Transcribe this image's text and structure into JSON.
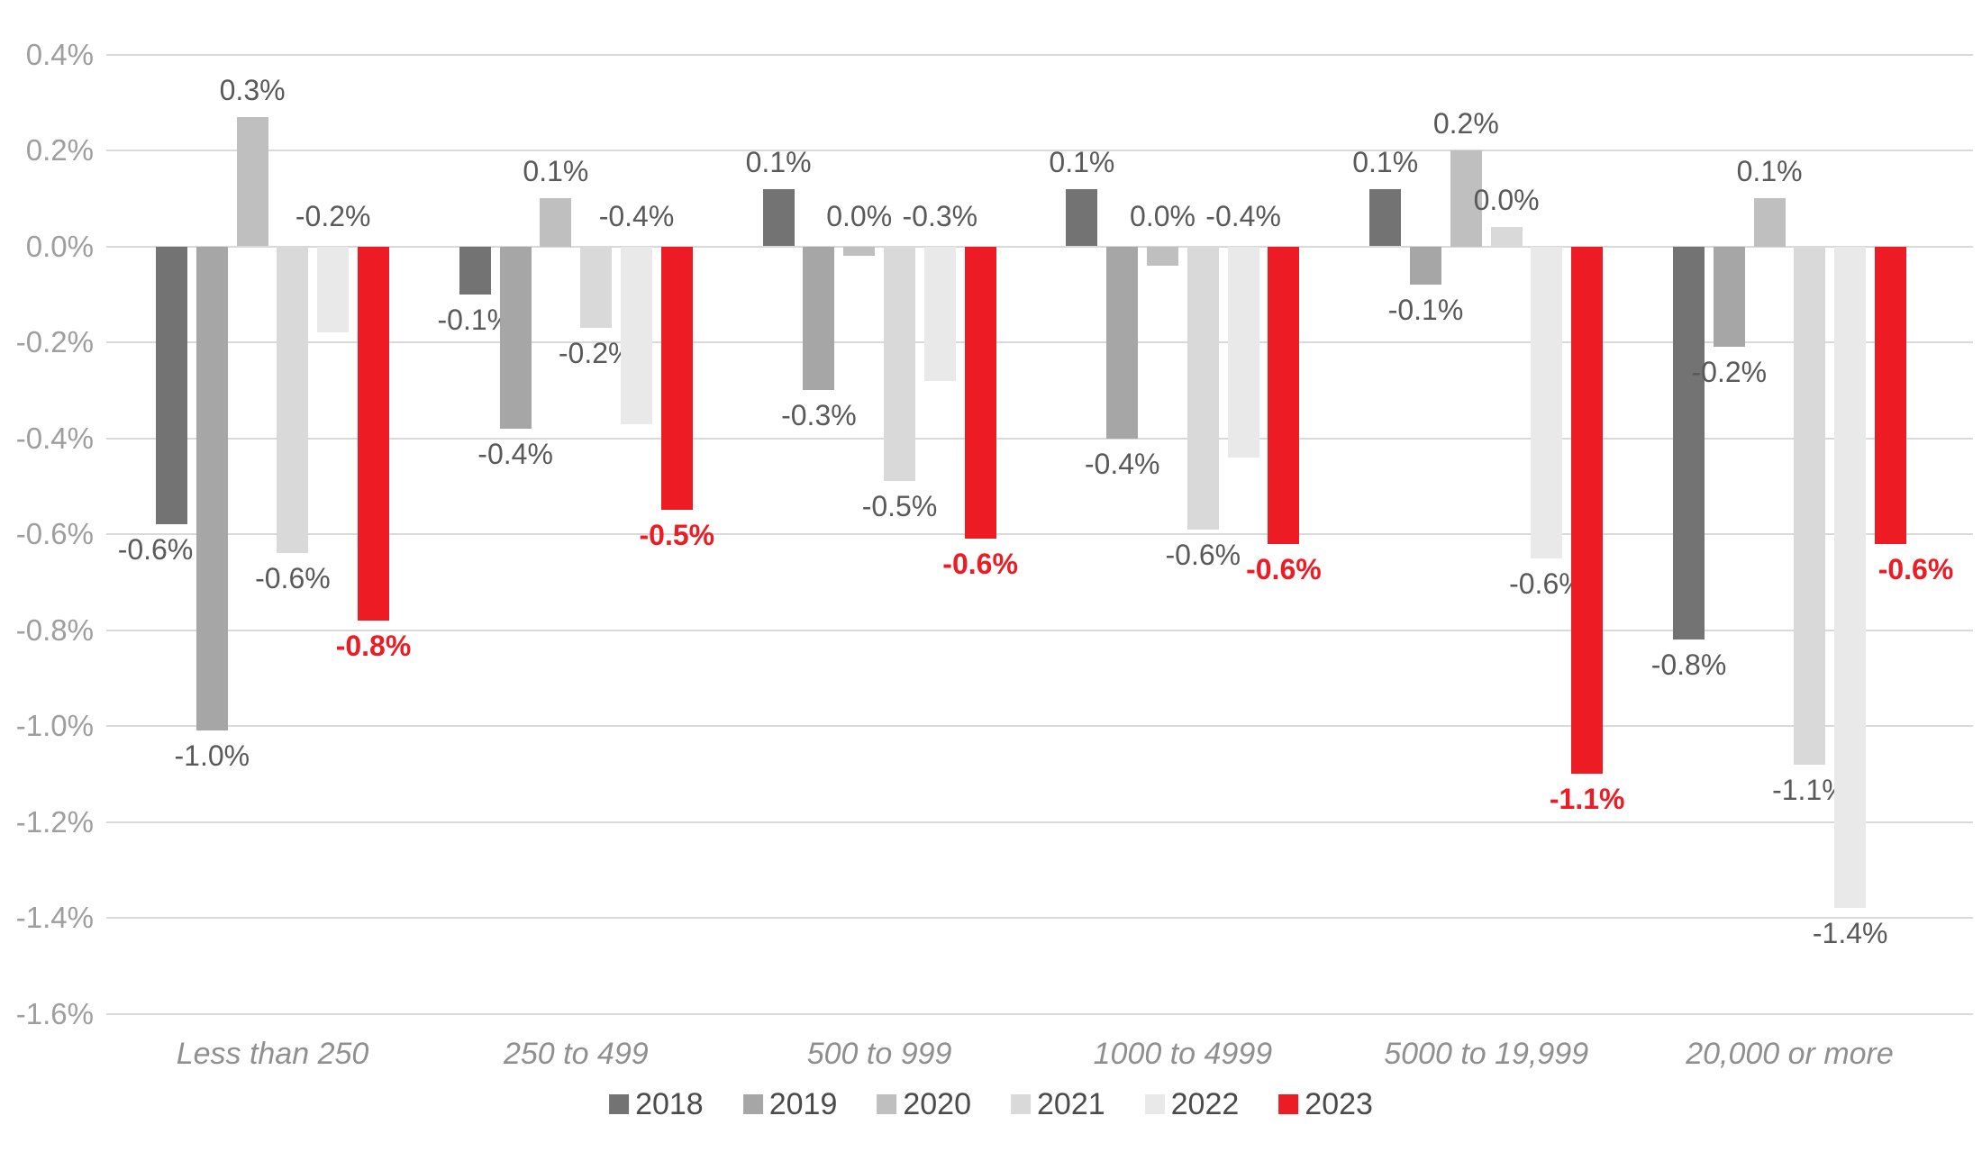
{
  "chart_data": {
    "type": "bar",
    "title": "",
    "categories": [
      "Less than 250",
      "250 to 499",
      "500 to 999",
      "1000 to 4999",
      "5000 to 19,999",
      "20,000 or more"
    ],
    "series": [
      {
        "name": "2018",
        "color": "#737373",
        "label_color": "#595959",
        "values": [
          -0.58,
          -0.1,
          0.12,
          0.12,
          0.12,
          -0.82
        ],
        "labels": [
          "-0.6%",
          "-0.1%",
          "0.1%",
          "0.1%",
          "0.1%",
          "-0.8%"
        ],
        "label_pos": [
          "out",
          "out",
          "out",
          "out",
          "out",
          "out"
        ],
        "label_dx": [
          -18,
          0,
          0,
          0,
          0,
          0
        ]
      },
      {
        "name": "2019",
        "color": "#a6a6a6",
        "label_color": "#595959",
        "values": [
          -1.01,
          -0.38,
          -0.3,
          -0.4,
          -0.08,
          -0.21
        ],
        "labels": [
          "-1.0%",
          "-0.4%",
          "-0.3%",
          "-0.4%",
          "-0.1%",
          "-0.2%"
        ],
        "label_pos": [
          "out",
          "out",
          "out",
          "out",
          "out",
          "out"
        ],
        "label_dx": [
          0,
          0,
          0,
          0,
          0,
          0
        ]
      },
      {
        "name": "2020",
        "color": "#bfbfbf",
        "label_color": "#595959",
        "values": [
          0.27,
          0.1,
          -0.02,
          -0.04,
          0.2,
          0.1
        ],
        "labels": [
          "0.3%",
          "0.1%",
          "0.0%",
          "0.0%",
          "0.2%",
          "0.1%"
        ],
        "label_pos": [
          "out",
          "out",
          "base",
          "base",
          "out",
          "out"
        ],
        "label_dx": [
          0,
          0,
          0,
          0,
          0,
          0
        ]
      },
      {
        "name": "2021",
        "color": "#d9d9d9",
        "label_color": "#595959",
        "values": [
          -0.64,
          -0.17,
          -0.49,
          -0.59,
          0.04,
          -1.08
        ],
        "labels": [
          "-0.6%",
          "-0.2%",
          "-0.5%",
          "-0.6%",
          "0.0%",
          "-1.1%"
        ],
        "label_pos": [
          "out",
          "out",
          "out",
          "out",
          "out",
          "out"
        ],
        "label_dx": [
          0,
          0,
          0,
          0,
          0,
          0
        ]
      },
      {
        "name": "2022",
        "color": "#e9e9e9",
        "label_color": "#595959",
        "values": [
          -0.18,
          -0.37,
          -0.28,
          -0.44,
          -0.65,
          -1.38
        ],
        "labels": [
          "-0.2%",
          "-0.4%",
          "-0.3%",
          "-0.4%",
          "-0.6%",
          "-1.4%"
        ],
        "label_pos": [
          "base",
          "base",
          "base",
          "base",
          "out",
          "out"
        ],
        "label_dx": [
          0,
          0,
          0,
          0,
          0,
          0
        ]
      },
      {
        "name": "2023",
        "color": "#ed1c24",
        "label_color": "#ed1c24",
        "values": [
          -0.78,
          -0.55,
          -0.61,
          -0.62,
          -1.1,
          -0.62
        ],
        "labels": [
          "-0.8%",
          "-0.5%",
          "-0.6%",
          "-0.6%",
          "-1.1%",
          "-0.6%"
        ],
        "label_pos": [
          "out",
          "out",
          "out",
          "out",
          "out",
          "out"
        ],
        "label_dx": [
          0,
          0,
          0,
          0,
          0,
          28
        ]
      }
    ],
    "y_axis": {
      "min": -1.6,
      "max": 0.4,
      "step": 0.2,
      "tick_labels": [
        "0.4%",
        "0.2%",
        "0.0%",
        "-0.2%",
        "-0.4%",
        "-0.6%",
        "-0.8%",
        "-1.0%",
        "-1.2%",
        "-1.4%",
        "-1.6%"
      ]
    },
    "xlabel": "",
    "ylabel": "",
    "grid": true,
    "legend": {
      "position": "bottom",
      "entries": [
        "2018",
        "2019",
        "2020",
        "2021",
        "2022",
        "2023"
      ]
    },
    "colors": {
      "gridline": "#d9d9d9",
      "axis_text": "#9e9e9e",
      "category_text": "#8f8f8f",
      "data_label_text": "#595959",
      "accent": "#ed1c24"
    }
  }
}
